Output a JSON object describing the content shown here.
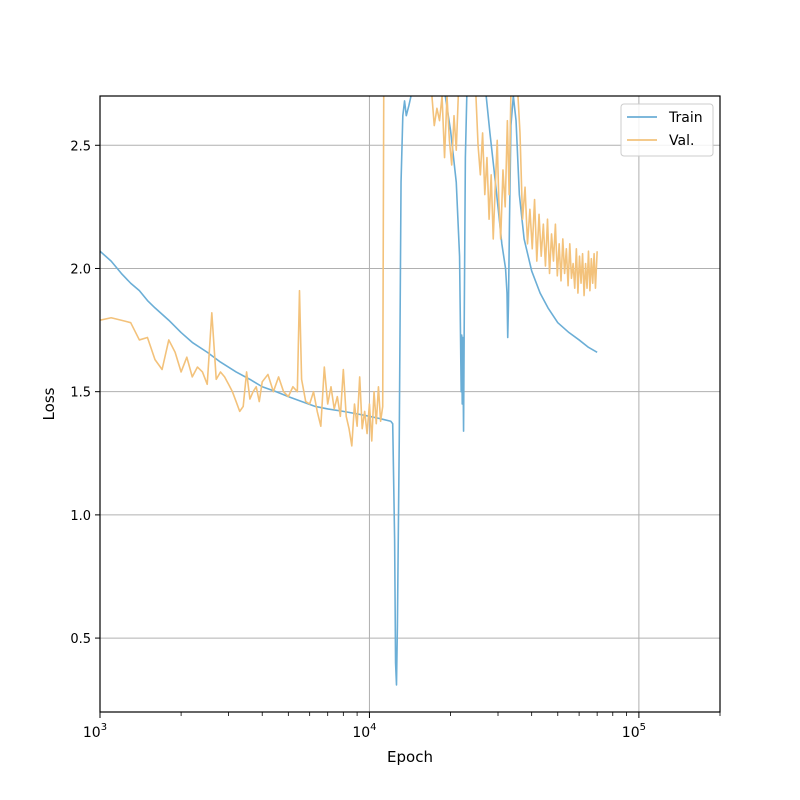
{
  "chart_data": {
    "type": "line",
    "title": "",
    "xlabel": "Epoch",
    "ylabel": "Loss",
    "x_scale": "log",
    "xlim": [
      1000,
      200000
    ],
    "ylim": [
      0.2,
      2.7
    ],
    "grid": true,
    "legend_position": "top-right",
    "y_ticks": [
      {
        "value": 0.5,
        "label": "0.5"
      },
      {
        "value": 1.0,
        "label": "1.0"
      },
      {
        "value": 1.5,
        "label": "1.5"
      },
      {
        "value": 2.0,
        "label": "2.0"
      },
      {
        "value": 2.5,
        "label": "2.5"
      }
    ],
    "x_major_ticks": [
      {
        "value": 1000,
        "base": "10",
        "exp": "3"
      },
      {
        "value": 10000,
        "base": "10",
        "exp": "4"
      },
      {
        "value": 100000,
        "base": "10",
        "exp": "5"
      }
    ],
    "series": [
      {
        "name": "Train",
        "color": "#6baed6",
        "points": [
          [
            1000,
            2.07
          ],
          [
            1100,
            2.03
          ],
          [
            1200,
            1.98
          ],
          [
            1300,
            1.94
          ],
          [
            1400,
            1.91
          ],
          [
            1500,
            1.87
          ],
          [
            1600,
            1.84
          ],
          [
            1800,
            1.79
          ],
          [
            2000,
            1.74
          ],
          [
            2200,
            1.7
          ],
          [
            2500,
            1.66
          ],
          [
            2800,
            1.62
          ],
          [
            3200,
            1.58
          ],
          [
            3600,
            1.55
          ],
          [
            4000,
            1.52
          ],
          [
            4500,
            1.5
          ],
          [
            5000,
            1.48
          ],
          [
            5600,
            1.46
          ],
          [
            6300,
            1.44
          ],
          [
            7000,
            1.43
          ],
          [
            8000,
            1.42
          ],
          [
            9000,
            1.41
          ],
          [
            10000,
            1.4
          ],
          [
            11000,
            1.39
          ],
          [
            12000,
            1.38
          ],
          [
            12200,
            1.37
          ],
          [
            12400,
            0.9
          ],
          [
            12500,
            0.4
          ],
          [
            12600,
            0.31
          ],
          [
            12700,
            0.55
          ],
          [
            12900,
            1.3
          ],
          [
            13100,
            2.35
          ],
          [
            13300,
            2.62
          ],
          [
            13500,
            2.68
          ],
          [
            13700,
            2.62
          ],
          [
            14000,
            2.66
          ],
          [
            14400,
            2.72
          ],
          [
            19000,
            2.72
          ],
          [
            20000,
            2.56
          ],
          [
            21000,
            2.35
          ],
          [
            21600,
            2.05
          ],
          [
            21900,
            1.5
          ],
          [
            22000,
            1.73
          ],
          [
            22100,
            1.45
          ],
          [
            22200,
            1.72
          ],
          [
            22350,
            1.34
          ],
          [
            22500,
            1.85
          ],
          [
            22700,
            2.45
          ],
          [
            23000,
            2.72
          ],
          [
            27000,
            2.72
          ],
          [
            28000,
            2.55
          ],
          [
            29000,
            2.4
          ],
          [
            30000,
            2.25
          ],
          [
            31000,
            2.1
          ],
          [
            32000,
            2.0
          ],
          [
            32400,
            1.9
          ],
          [
            32600,
            1.72
          ],
          [
            32800,
            1.85
          ],
          [
            33100,
            2.2
          ],
          [
            33500,
            2.58
          ],
          [
            34200,
            2.7
          ],
          [
            35000,
            2.6
          ],
          [
            36000,
            2.3
          ],
          [
            37500,
            2.12
          ],
          [
            40000,
            1.99
          ],
          [
            43000,
            1.9
          ],
          [
            46000,
            1.84
          ],
          [
            50000,
            1.78
          ],
          [
            55000,
            1.74
          ],
          [
            60000,
            1.71
          ],
          [
            65000,
            1.68
          ],
          [
            70000,
            1.66
          ]
        ]
      },
      {
        "name": "Val.",
        "color": "#f3c27b",
        "points": [
          [
            1000,
            1.79
          ],
          [
            1100,
            1.8
          ],
          [
            1200,
            1.79
          ],
          [
            1300,
            1.78
          ],
          [
            1400,
            1.71
          ],
          [
            1500,
            1.72
          ],
          [
            1600,
            1.63
          ],
          [
            1700,
            1.59
          ],
          [
            1800,
            1.71
          ],
          [
            1900,
            1.66
          ],
          [
            2000,
            1.58
          ],
          [
            2100,
            1.64
          ],
          [
            2200,
            1.56
          ],
          [
            2300,
            1.6
          ],
          [
            2400,
            1.58
          ],
          [
            2500,
            1.53
          ],
          [
            2600,
            1.82
          ],
          [
            2700,
            1.55
          ],
          [
            2800,
            1.58
          ],
          [
            2900,
            1.56
          ],
          [
            3000,
            1.53
          ],
          [
            3100,
            1.5
          ],
          [
            3200,
            1.46
          ],
          [
            3300,
            1.42
          ],
          [
            3400,
            1.44
          ],
          [
            3500,
            1.58
          ],
          [
            3600,
            1.47
          ],
          [
            3700,
            1.5
          ],
          [
            3800,
            1.52
          ],
          [
            3900,
            1.46
          ],
          [
            4000,
            1.54
          ],
          [
            4200,
            1.57
          ],
          [
            4400,
            1.5
          ],
          [
            4600,
            1.56
          ],
          [
            4800,
            1.5
          ],
          [
            5000,
            1.48
          ],
          [
            5200,
            1.52
          ],
          [
            5400,
            1.5
          ],
          [
            5500,
            1.91
          ],
          [
            5600,
            1.55
          ],
          [
            5800,
            1.46
          ],
          [
            6000,
            1.45
          ],
          [
            6200,
            1.5
          ],
          [
            6400,
            1.42
          ],
          [
            6600,
            1.36
          ],
          [
            6800,
            1.6
          ],
          [
            7000,
            1.45
          ],
          [
            7200,
            1.52
          ],
          [
            7400,
            1.43
          ],
          [
            7600,
            1.48
          ],
          [
            7800,
            1.4
          ],
          [
            8000,
            1.59
          ],
          [
            8200,
            1.4
          ],
          [
            8400,
            1.35
          ],
          [
            8600,
            1.28
          ],
          [
            8800,
            1.45
          ],
          [
            9000,
            1.36
          ],
          [
            9200,
            1.56
          ],
          [
            9400,
            1.35
          ],
          [
            9600,
            1.42
          ],
          [
            9800,
            1.33
          ],
          [
            10000,
            1.45
          ],
          [
            10200,
            1.3
          ],
          [
            10400,
            1.5
          ],
          [
            10600,
            1.37
          ],
          [
            10800,
            1.52
          ],
          [
            11000,
            1.38
          ],
          [
            11200,
            1.44
          ],
          [
            11300,
            2.72
          ],
          [
            17000,
            2.72
          ],
          [
            17400,
            2.58
          ],
          [
            17800,
            2.65
          ],
          [
            18200,
            2.6
          ],
          [
            18600,
            2.7
          ],
          [
            19000,
            2.45
          ],
          [
            19400,
            2.7
          ],
          [
            19800,
            2.52
          ],
          [
            20200,
            2.42
          ],
          [
            20600,
            2.62
          ],
          [
            21000,
            2.48
          ],
          [
            21400,
            2.72
          ],
          [
            24800,
            2.72
          ],
          [
            25300,
            2.5
          ],
          [
            25800,
            2.38
          ],
          [
            26300,
            2.55
          ],
          [
            26800,
            2.3
          ],
          [
            27300,
            2.45
          ],
          [
            27800,
            2.2
          ],
          [
            28300,
            2.38
          ],
          [
            28800,
            2.12
          ],
          [
            29300,
            2.33
          ],
          [
            29800,
            2.52
          ],
          [
            30200,
            2.28
          ],
          [
            30700,
            2.12
          ],
          [
            31300,
            2.4
          ],
          [
            31900,
            2.25
          ],
          [
            32500,
            2.6
          ],
          [
            33000,
            2.3
          ],
          [
            33500,
            2.72
          ],
          [
            35500,
            2.72
          ],
          [
            36200,
            2.55
          ],
          [
            37000,
            2.2
          ],
          [
            37800,
            2.33
          ],
          [
            38600,
            2.1
          ],
          [
            39400,
            2.24
          ],
          [
            40200,
            2.08
          ],
          [
            41000,
            2.28
          ],
          [
            41800,
            2.03
          ],
          [
            42600,
            2.22
          ],
          [
            43400,
            2.05
          ],
          [
            44200,
            2.18
          ],
          [
            45000,
            2.01
          ],
          [
            45800,
            2.2
          ],
          [
            46600,
            1.98
          ],
          [
            47400,
            2.14
          ],
          [
            48200,
            2.03
          ],
          [
            49000,
            2.18
          ],
          [
            49800,
            1.97
          ],
          [
            50600,
            2.1
          ],
          [
            51400,
            1.95
          ],
          [
            52200,
            2.12
          ],
          [
            53000,
            1.98
          ],
          [
            53800,
            2.08
          ],
          [
            54600,
            1.93
          ],
          [
            55400,
            2.1
          ],
          [
            56200,
            1.96
          ],
          [
            57000,
            2.02
          ],
          [
            57800,
            1.92
          ],
          [
            58600,
            2.08
          ],
          [
            59400,
            1.9
          ],
          [
            60200,
            2.05
          ],
          [
            61000,
            1.94
          ],
          [
            61800,
            2.06
          ],
          [
            62600,
            1.89
          ],
          [
            63400,
            2.02
          ],
          [
            64200,
            1.92
          ],
          [
            65000,
            2.07
          ],
          [
            65800,
            1.91
          ],
          [
            66600,
            2.04
          ],
          [
            67400,
            1.94
          ],
          [
            68200,
            2.06
          ],
          [
            69000,
            1.92
          ],
          [
            70000,
            2.07
          ]
        ]
      }
    ]
  }
}
